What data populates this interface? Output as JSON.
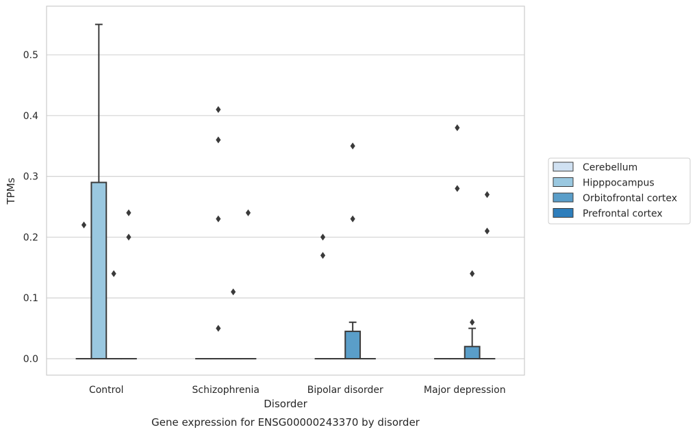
{
  "chart_data": {
    "type": "box",
    "xlabel": "Disorder",
    "ylabel": "TPMs",
    "caption": "Gene expression for ENSG00000243370 by disorder",
    "ylim": [
      -0.027,
      0.58
    ],
    "yticks": [
      "0.0",
      "0.1",
      "0.2",
      "0.3",
      "0.4",
      "0.5"
    ],
    "grid": "horizontal",
    "legend_position": "right",
    "categories": [
      "Control",
      "Schizophrenia",
      "Bipolar disorder",
      "Major depression"
    ],
    "series": [
      {
        "name": "Cerebellum",
        "color": "#d0e1f2",
        "boxes": [
          {
            "q1": 0,
            "median": 0,
            "q3": 0,
            "whisker_low": 0,
            "whisker_high": 0,
            "outliers": [
              0.22
            ]
          },
          {
            "q1": 0,
            "median": 0,
            "q3": 0,
            "whisker_low": 0,
            "whisker_high": 0,
            "outliers": []
          },
          {
            "q1": 0,
            "median": 0,
            "q3": 0,
            "whisker_low": 0,
            "whisker_high": 0,
            "outliers": [
              0.2,
              0.17
            ]
          },
          {
            "q1": 0,
            "median": 0,
            "q3": 0,
            "whisker_low": 0,
            "whisker_high": 0,
            "outliers": []
          }
        ]
      },
      {
        "name": "Hipppocampus",
        "color": "#9ac8e0",
        "boxes": [
          {
            "q1": 0,
            "median": 0,
            "q3": 0.29,
            "whisker_low": 0,
            "whisker_high": 0.55,
            "outliers": []
          },
          {
            "q1": 0,
            "median": 0,
            "q3": 0,
            "whisker_low": 0,
            "whisker_high": 0,
            "outliers": [
              0.41,
              0.36,
              0.23,
              0.05
            ]
          },
          {
            "q1": 0,
            "median": 0,
            "q3": 0,
            "whisker_low": 0,
            "whisker_high": 0,
            "outliers": []
          },
          {
            "q1": 0,
            "median": 0,
            "q3": 0,
            "whisker_low": 0,
            "whisker_high": 0,
            "outliers": [
              0.38,
              0.28
            ]
          }
        ]
      },
      {
        "name": "Orbitofrontal cortex",
        "color": "#5a9ec9",
        "boxes": [
          {
            "q1": 0,
            "median": 0,
            "q3": 0,
            "whisker_low": 0,
            "whisker_high": 0,
            "outliers": [
              0.14
            ]
          },
          {
            "q1": 0,
            "median": 0,
            "q3": 0,
            "whisker_low": 0,
            "whisker_high": 0,
            "outliers": [
              0.11
            ]
          },
          {
            "q1": 0,
            "median": 0,
            "q3": 0.045,
            "whisker_low": 0,
            "whisker_high": 0.06,
            "outliers": [
              0.35,
              0.23
            ]
          },
          {
            "q1": 0,
            "median": 0,
            "q3": 0.02,
            "whisker_low": 0,
            "whisker_high": 0.05,
            "outliers": [
              0.14,
              0.06
            ]
          }
        ]
      },
      {
        "name": "Prefrontal cortex",
        "color": "#2e7ebc",
        "boxes": [
          {
            "q1": 0,
            "median": 0,
            "q3": 0,
            "whisker_low": 0,
            "whisker_high": 0,
            "outliers": [
              0.24,
              0.2
            ]
          },
          {
            "q1": 0,
            "median": 0,
            "q3": 0,
            "whisker_low": 0,
            "whisker_high": 0,
            "outliers": [
              0.24
            ]
          },
          {
            "q1": 0,
            "median": 0,
            "q3": 0,
            "whisker_low": 0,
            "whisker_high": 0,
            "outliers": []
          },
          {
            "q1": 0,
            "median": 0,
            "q3": 0,
            "whisker_low": 0,
            "whisker_high": 0,
            "outliers": [
              0.27,
              0.21
            ]
          }
        ]
      }
    ]
  }
}
